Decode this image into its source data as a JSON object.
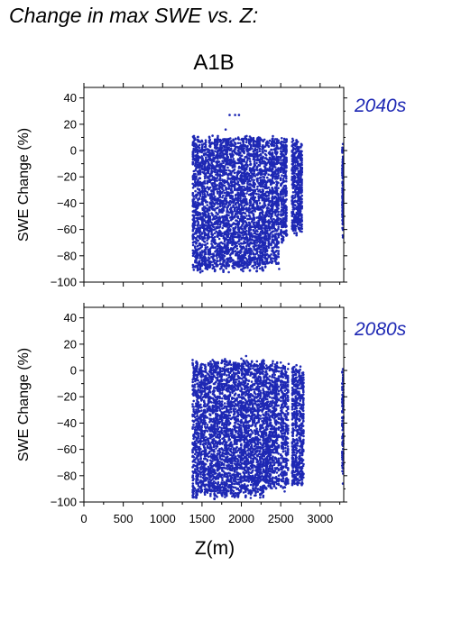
{
  "title": "Change in max SWE vs. Z:",
  "scenario": "A1B",
  "chart_data": {
    "type": "scatter",
    "x_label": "Z(m)",
    "y_label": "SWE Change (%)",
    "xlim": [
      0,
      3300
    ],
    "ylim": [
      -100,
      48
    ],
    "x_ticks": [
      0,
      500,
      1000,
      1500,
      2000,
      2500,
      3000
    ],
    "y_ticks": [
      -100,
      -80,
      -60,
      -40,
      -20,
      0,
      20,
      40
    ],
    "marker_color": "#1e28b4",
    "panels": [
      {
        "label": "2040s",
        "y_max_envelope": 13,
        "y_min_envelope": -94,
        "outliers": [
          [
            1850,
            27
          ],
          [
            1920,
            27
          ],
          [
            1970,
            27
          ],
          [
            1800,
            16
          ],
          [
            2400,
            11
          ],
          [
            2650,
            9
          ],
          [
            2700,
            8
          ],
          [
            2760,
            5
          ],
          [
            2480,
            -90
          ],
          [
            2300,
            -70
          ],
          [
            2580,
            -64
          ],
          [
            2680,
            -57
          ],
          [
            3290,
            5
          ],
          [
            3290,
            -66
          ]
        ],
        "column_groups": [
          {
            "x_range": [
              1380,
              2300
            ],
            "y_range": [
              -93,
              12
            ]
          },
          {
            "x_range": [
              2300,
              2480
            ],
            "y_range": [
              -90,
              11
            ]
          },
          {
            "x_range": [
              2500,
              2580
            ],
            "y_range": [
              -70,
              10
            ]
          },
          {
            "x_range": [
              2640,
              2780
            ],
            "y_range": [
              -65,
              9
            ]
          },
          {
            "x_range": [
              3280,
              3300
            ],
            "y_range": [
              -66,
              6
            ]
          }
        ]
      },
      {
        "label": "2080s",
        "y_max_envelope": 10,
        "y_min_envelope": -98,
        "outliers": [
          [
            2060,
            11
          ],
          [
            2000,
            9
          ],
          [
            2400,
            7
          ],
          [
            2500,
            6
          ],
          [
            2600,
            5
          ],
          [
            2700,
            4
          ],
          [
            2750,
            3
          ],
          [
            2420,
            -88
          ],
          [
            2550,
            -92
          ],
          [
            3290,
            1
          ],
          [
            3290,
            -86
          ]
        ],
        "column_groups": [
          {
            "x_range": [
              1380,
              2300
            ],
            "y_range": [
              -98,
              9
            ]
          },
          {
            "x_range": [
              2300,
              2480
            ],
            "y_range": [
              -92,
              7
            ]
          },
          {
            "x_range": [
              2500,
              2600
            ],
            "y_range": [
              -92,
              5
            ]
          },
          {
            "x_range": [
              2640,
              2800
            ],
            "y_range": [
              -89,
              4
            ]
          },
          {
            "x_range": [
              3280,
              3300
            ],
            "y_range": [
              -86,
              1
            ]
          }
        ]
      }
    ]
  }
}
